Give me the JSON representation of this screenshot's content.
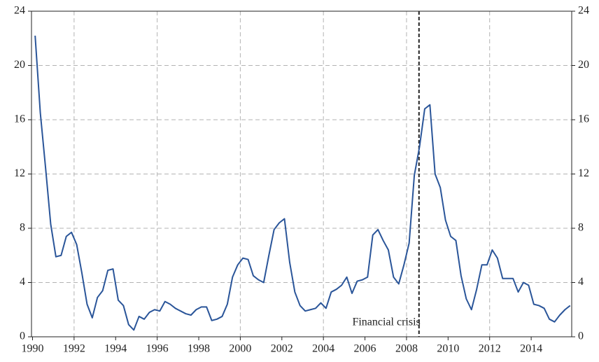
{
  "chart_data": {
    "type": "line",
    "x": [
      1990.125,
      1990.375,
      1990.625,
      1990.875,
      1991.125,
      1991.375,
      1991.625,
      1991.875,
      1992.125,
      1992.375,
      1992.625,
      1992.875,
      1993.125,
      1993.375,
      1993.625,
      1993.875,
      1994.125,
      1994.375,
      1994.625,
      1994.875,
      1995.125,
      1995.375,
      1995.625,
      1995.875,
      1996.125,
      1996.375,
      1996.625,
      1996.875,
      1997.125,
      1997.375,
      1997.625,
      1997.875,
      1998.125,
      1998.375,
      1998.625,
      1998.875,
      1999.125,
      1999.375,
      1999.625,
      1999.875,
      2000.125,
      2000.375,
      2000.625,
      2000.875,
      2001.125,
      2001.375,
      2001.625,
      2001.875,
      2002.125,
      2002.375,
      2002.625,
      2002.875,
      2003.125,
      2003.375,
      2003.625,
      2003.875,
      2004.125,
      2004.375,
      2004.625,
      2004.875,
      2005.125,
      2005.375,
      2005.625,
      2005.875,
      2006.125,
      2006.375,
      2006.625,
      2006.875,
      2007.125,
      2007.375,
      2007.625,
      2007.875,
      2008.125,
      2008.375,
      2008.625,
      2008.875,
      2009.125,
      2009.375,
      2009.625,
      2009.875,
      2010.125,
      2010.375,
      2010.625,
      2010.875,
      2011.125,
      2011.375,
      2011.625,
      2011.875,
      2012.125,
      2012.375,
      2012.625,
      2012.875,
      2013.125,
      2013.375,
      2013.625,
      2013.875,
      2014.125,
      2014.375,
      2014.625,
      2014.875,
      2015.125,
      2015.375,
      2015.625,
      2015.875
    ],
    "series": [
      {
        "color": "#2a5599",
        "values": [
          22.2,
          16.5,
          12.5,
          8.3,
          5.9,
          6.0,
          7.4,
          7.7,
          6.8,
          4.7,
          2.4,
          1.4,
          2.9,
          3.4,
          4.9,
          5.0,
          2.7,
          2.3,
          0.9,
          0.5,
          1.5,
          1.3,
          1.8,
          2.0,
          1.9,
          2.6,
          2.4,
          2.1,
          1.9,
          1.7,
          1.6,
          2.0,
          2.2,
          2.2,
          1.2,
          1.3,
          1.5,
          2.4,
          4.4,
          5.3,
          5.8,
          5.7,
          4.5,
          4.2,
          4.0,
          6.0,
          7.9,
          8.4,
          8.7,
          5.5,
          3.3,
          2.3,
          1.9,
          2.0,
          2.1,
          2.5,
          2.1,
          3.3,
          3.5,
          3.8,
          4.4,
          3.2,
          4.1,
          4.2,
          4.4,
          7.5,
          7.9,
          7.1,
          6.4,
          4.4,
          3.9,
          5.3,
          6.9,
          11.9,
          14.0,
          16.8,
          17.1,
          12.0,
          11.0,
          8.6,
          7.4,
          7.1,
          4.5,
          2.8,
          2.0,
          3.5,
          5.3,
          5.3,
          6.4,
          5.8,
          4.3,
          4.3,
          4.3,
          3.3,
          4.0,
          3.8,
          2.4,
          2.3,
          2.1,
          1.3,
          1.1,
          1.6,
          2.0,
          2.3
        ]
      }
    ],
    "xlim": [
      1989.95,
      2015.95
    ],
    "xticks": [
      1990,
      1992,
      1994,
      1996,
      1998,
      2000,
      2002,
      2004,
      2006,
      2008,
      2010,
      2012,
      2014
    ],
    "x_grid_lines": [
      1992,
      1996,
      2000,
      2004,
      2008,
      2012
    ],
    "ylim": [
      0,
      24
    ],
    "yticks": [
      0,
      4,
      8,
      12,
      16,
      20,
      24
    ],
    "y2lim": [
      0,
      24
    ],
    "y2ticks": [
      0,
      4,
      8,
      12,
      16,
      20,
      24
    ],
    "grid": true,
    "annotations": [
      {
        "x": 2008.6,
        "label": "Financial crisis"
      }
    ]
  }
}
